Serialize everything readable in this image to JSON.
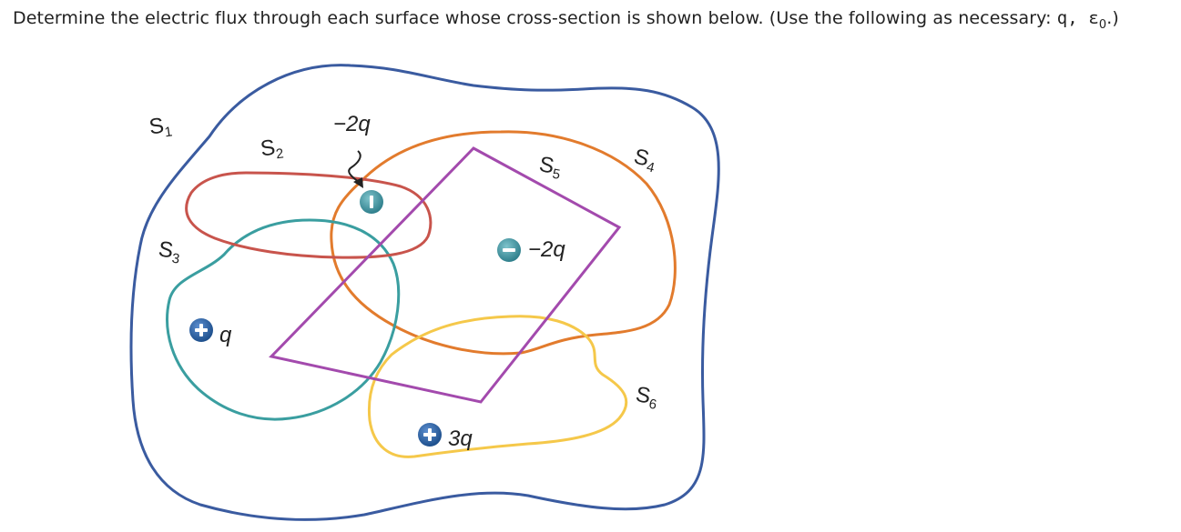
{
  "question": {
    "text": "Determine the electric flux through each surface whose cross-section is shown below. (Use the following as necessary: ",
    "vars": "q, ε",
    "sub": "0",
    "end": ".)"
  },
  "surfaces": [
    {
      "letter": "S",
      "sub": "1",
      "color": "#3a5ba0"
    },
    {
      "letter": "S",
      "sub": "2",
      "color": "#c8544c"
    },
    {
      "letter": "S",
      "sub": "3",
      "color": "#3a9ea0"
    },
    {
      "letter": "S",
      "sub": "4",
      "color": "#e27b2d"
    },
    {
      "letter": "S",
      "sub": "5",
      "color": "#a34aad"
    },
    {
      "letter": "S",
      "sub": "6",
      "color": "#f5c84a"
    }
  ],
  "charges": [
    {
      "label": "q",
      "sign": "positive",
      "color": "#1d4f8c"
    },
    {
      "label": "−2q",
      "sign": "negative",
      "color": "#2f7f8c"
    },
    {
      "label": "−2q",
      "sign": "negative",
      "color": "#2f7f8c"
    },
    {
      "label": "3q",
      "sign": "positive",
      "color": "#1d4f8c"
    }
  ]
}
